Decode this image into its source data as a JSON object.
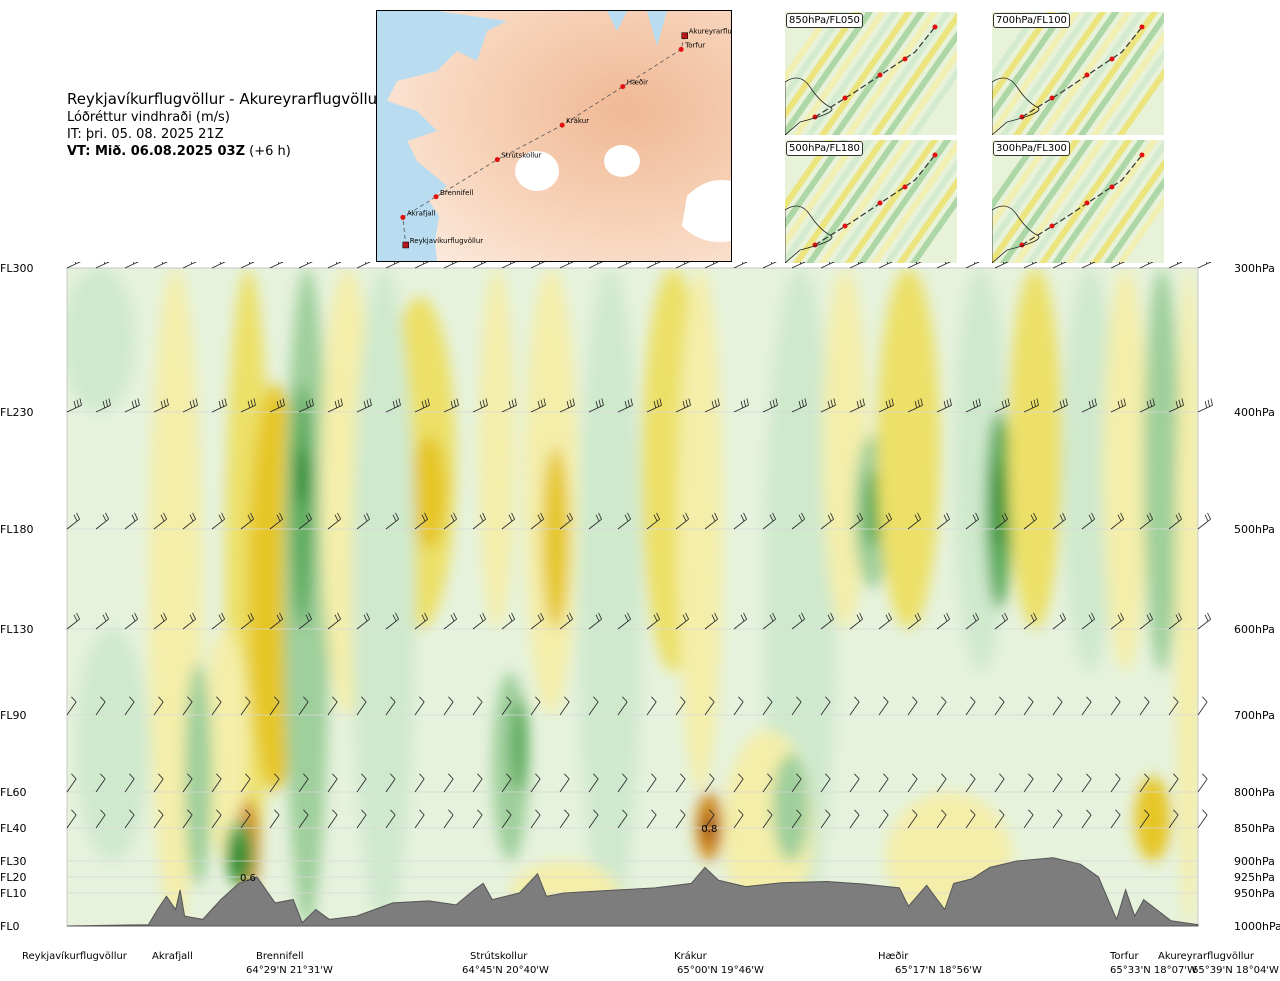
{
  "header": {
    "title": "Reykjavíkurflugvöllur - Akureyrarflugvöllur",
    "subtitle": "Lóðréttur vindhraði (m/s)",
    "it": "IT: þri. 05. 08. 2025 21Z",
    "vt_bold": "VT: Mið. 06.08.2025 03Z",
    "vt_offset": "(+6 h)"
  },
  "route_map": {
    "points": [
      {
        "name": "Akureyrarflugvöllur",
        "lon": -18.07,
        "lat": 65.65
      },
      {
        "name": "Torfur",
        "lon": -18.12,
        "lat": 65.55
      },
      {
        "name": "Hæðir",
        "lon": -18.93,
        "lat": 65.28
      },
      {
        "name": "Krákur",
        "lon": -19.77,
        "lat": 65.0
      },
      {
        "name": "Strútskollur",
        "lon": -20.67,
        "lat": 64.75
      },
      {
        "name": "Brennifell",
        "lon": -21.52,
        "lat": 64.48
      },
      {
        "name": "Akrafjall",
        "lon": -21.98,
        "lat": 64.33
      },
      {
        "name": "Reykjavíkurflugvöllur",
        "lon": -21.94,
        "lat": 64.13
      }
    ]
  },
  "level_maps": [
    {
      "label": "850hPa/FL050"
    },
    {
      "label": "700hPa/FL100"
    },
    {
      "label": "500hPa/FL180"
    },
    {
      "label": "300hPa/FL300"
    }
  ],
  "chart_data": {
    "type": "heatmap",
    "title": "Lóðréttur vindhraði (m/s)",
    "x_range_km": [
      0,
      250
    ],
    "flight_levels": [
      {
        "fl": "FL300",
        "hpa": "300hPa",
        "p": 300
      },
      {
        "fl": "FL230",
        "hpa": "400hPa",
        "p": 400
      },
      {
        "fl": "FL180",
        "hpa": "500hPa",
        "p": 500
      },
      {
        "fl": "FL130",
        "hpa": "600hPa",
        "p": 600
      },
      {
        "fl": "FL90",
        "hpa": "700hPa",
        "p": 700
      },
      {
        "fl": "FL60",
        "hpa": "800hPa",
        "p": 800
      },
      {
        "fl": "FL40",
        "hpa": "850hPa",
        "p": 850
      },
      {
        "fl": "FL30",
        "hpa": "900hPa",
        "p": 900
      },
      {
        "fl": "FL20",
        "hpa": "925hPa",
        "p": 925
      },
      {
        "fl": "FL10",
        "hpa": "950hPa",
        "p": 950
      },
      {
        "fl": "FL0",
        "hpa": "1000hPa",
        "p": 1000
      }
    ],
    "locations": [
      {
        "name": "Reykjavíkurflugvöllur",
        "coord": "",
        "x_km": 0
      },
      {
        "name": "Akrafjall",
        "coord": "",
        "x_km": 23
      },
      {
        "name": "Brennifell",
        "coord": "64°29'N 21°31'W",
        "x_km": 46
      },
      {
        "name": "Strútskollur",
        "coord": "64°45'N 20°40'W",
        "x_km": 94
      },
      {
        "name": "Krákur",
        "coord": "65°00'N 19°46'W",
        "x_km": 143
      },
      {
        "name": "Hæðir",
        "coord": "65°17'N 18°56'W",
        "x_km": 195
      },
      {
        "name": "Torfur",
        "coord": "65°33'N 18°07'W",
        "x_km": 238
      },
      {
        "name": "Akureyrarflugvöllur",
        "coord": "65°39'N 18°04'W",
        "x_km": 250
      }
    ],
    "contour_labels": [
      {
        "text": "0.8",
        "x_km": 142,
        "p": 850
      },
      {
        "text": "0.6",
        "x_km": 40,
        "p": 925
      }
    ],
    "colors": {
      "down_strong": "#2e8b2e",
      "down_mid": "#5cab5c",
      "down_weak": "#9fcf9c",
      "down_faint": "#cfe9cd",
      "neutral": "#f7f7e2",
      "up_faint": "#f4eeaa",
      "up_weak": "#ece067",
      "up_mid": "#e6c625",
      "up_strong": "#d08a1c",
      "up_max": "#9a4a12",
      "terrain": "#7d7d7d"
    }
  }
}
